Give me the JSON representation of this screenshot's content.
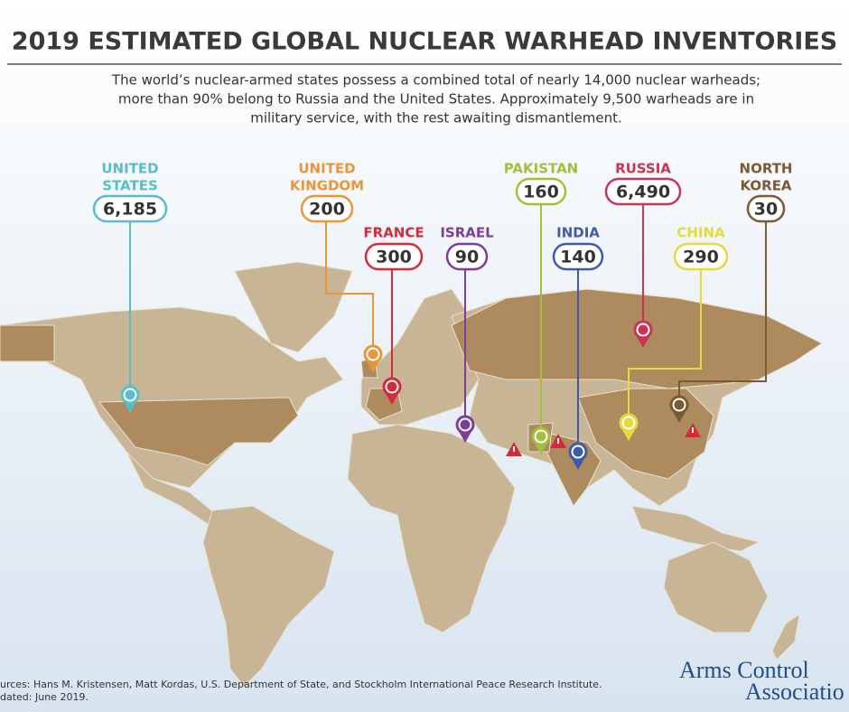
{
  "header": {
    "title": "2019 ESTIMATED GLOBAL NUCLEAR WARHEAD INVENTORIES",
    "subtitle": [
      "The world’s nuclear-armed states possess a combined total of nearly 14,000 nuclear warheads;",
      "more than 90% belong to Russia and the United States. Approximately 9,500 warheads are in",
      "military service, with the rest awaiting dismantlement."
    ]
  },
  "countries": [
    {
      "name": [
        "UNITED",
        "STATES"
      ],
      "count": "6,185",
      "color": "#5bbcc9"
    },
    {
      "name": [
        "UNITED",
        "KINGDOM"
      ],
      "count": "200",
      "color": "#e8963a"
    },
    {
      "name": [
        "FRANCE"
      ],
      "count": "300",
      "color": "#d42a3a"
    },
    {
      "name": [
        "ISRAEL"
      ],
      "count": "90",
      "color": "#7b3f98"
    },
    {
      "name": [
        "PAKISTAN"
      ],
      "count": "160",
      "color": "#a4bf3a"
    },
    {
      "name": [
        "INDIA"
      ],
      "count": "140",
      "color": "#3e5aa8"
    },
    {
      "name": [
        "RUSSIA"
      ],
      "count": "6,490",
      "color": "#cc3355"
    },
    {
      "name": [
        "CHINA"
      ],
      "count": "290",
      "color": "#e6d93a"
    },
    {
      "name": [
        "NORTH",
        "KOREA"
      ],
      "count": "30",
      "color": "#7a5a32"
    }
  ],
  "footer": {
    "sources": "urces: Hans M. Kristensen, Matt Kordas, U.S. Department of State, and Stockholm International Peace Research Institute.",
    "updated": "dated: June 2019.",
    "logo": [
      "Arms Control",
      "Associatio"
    ]
  }
}
